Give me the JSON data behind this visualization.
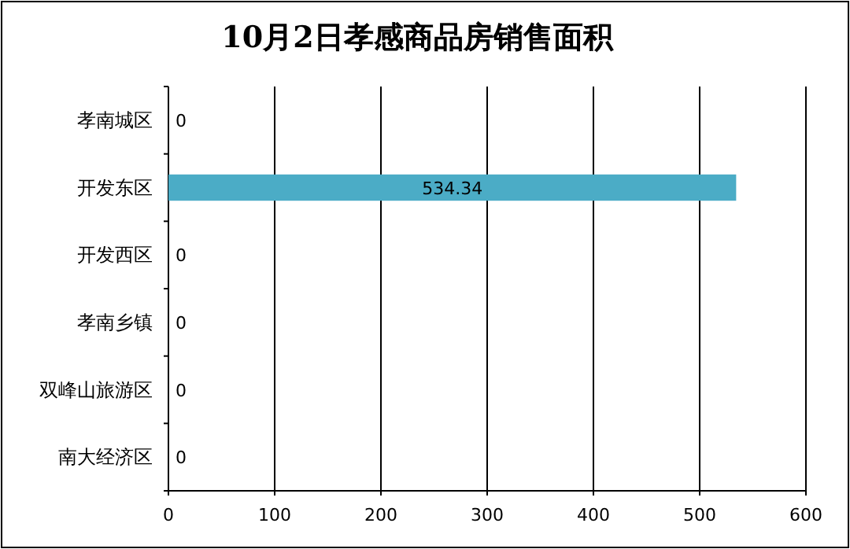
{
  "chart_data": {
    "type": "bar",
    "orientation": "horizontal",
    "title": "10月2日孝感商品房销售面积",
    "categories": [
      "孝南城区",
      "开发东区",
      "开发西区",
      "孝南乡镇",
      "双峰山旅游区",
      "南大经济区"
    ],
    "values": [
      0,
      534.34,
      0,
      0,
      0,
      0
    ],
    "color": "#4bacc6",
    "xlim": [
      0,
      600
    ],
    "xticks": [
      0,
      100,
      200,
      300,
      400,
      500,
      600
    ],
    "grid": "x",
    "data_labels": true
  }
}
